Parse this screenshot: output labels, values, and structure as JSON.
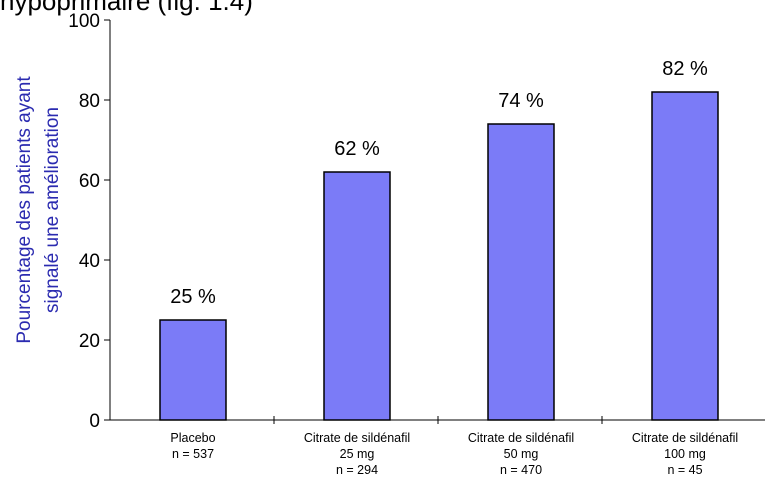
{
  "caption": "hypoprimaire (fig. 1.4)",
  "chart_data": {
    "type": "bar",
    "title": "",
    "xlabel": "",
    "ylabel": [
      "Pourcentage des patients ayant",
      "signalé une amélioration"
    ],
    "ylim": [
      0,
      100
    ],
    "yticks": [
      0,
      20,
      40,
      60,
      80,
      100
    ],
    "grid": false,
    "categories": [
      [
        "Placebo",
        "n = 537"
      ],
      [
        "Citrate de sildénafil",
        "25 mg",
        "n = 294"
      ],
      [
        "Citrate de sildénafil",
        "50 mg",
        "n = 470"
      ],
      [
        "Citrate de sildénafil",
        "100 mg",
        "n = 45"
      ]
    ],
    "values": [
      25,
      62,
      74,
      82
    ],
    "data_labels": [
      "25 %",
      "62 %",
      "74 %",
      "82 %"
    ],
    "bar_color": "#7b7bf7",
    "ylabel_color": "#2b2bb0"
  }
}
